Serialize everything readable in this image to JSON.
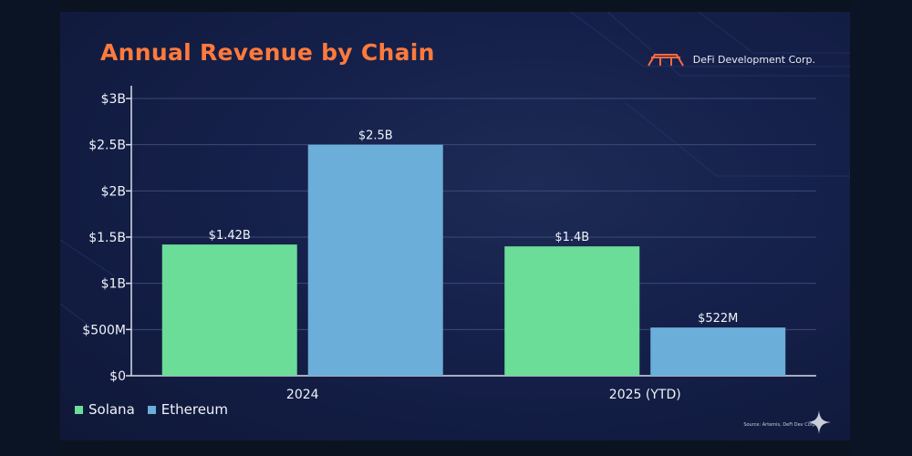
{
  "colors": {
    "solana": "#6cdc99",
    "ethereum": "#6aaed9",
    "title": "#ff7a3c",
    "brand_logo": "#ff6a40"
  },
  "icons": [
    "defi-bridge-logo-icon",
    "sparkle-icon"
  ],
  "brand": {
    "name": "DeFi Development Corp."
  },
  "source": "Source: Artemis, DeFi Dev Corp",
  "chart_data": {
    "type": "bar",
    "title": "Annual Revenue by Chain",
    "xlabel": "",
    "ylabel": "",
    "categories": [
      "2024",
      "2025 (YTD)"
    ],
    "series": [
      {
        "name": "Solana",
        "values": [
          1420000000,
          1400000000
        ],
        "labels": [
          "$1.42B",
          "$1.4B"
        ]
      },
      {
        "name": "Ethereum",
        "values": [
          2500000000,
          522000000
        ],
        "labels": [
          "$2.5B",
          "$522M"
        ]
      }
    ],
    "ylim": [
      0,
      3000000000
    ],
    "yticks": [
      {
        "value": 0,
        "label": "$0"
      },
      {
        "value": 500000000,
        "label": "$500M"
      },
      {
        "value": 1000000000,
        "label": "$1B"
      },
      {
        "value": 1500000000,
        "label": "$1.5B"
      },
      {
        "value": 2000000000,
        "label": "$2B"
      },
      {
        "value": 2500000000,
        "label": "$2.5B"
      },
      {
        "value": 3000000000,
        "label": "$3B"
      }
    ],
    "grid": true,
    "legend_position": "bottom-left"
  }
}
